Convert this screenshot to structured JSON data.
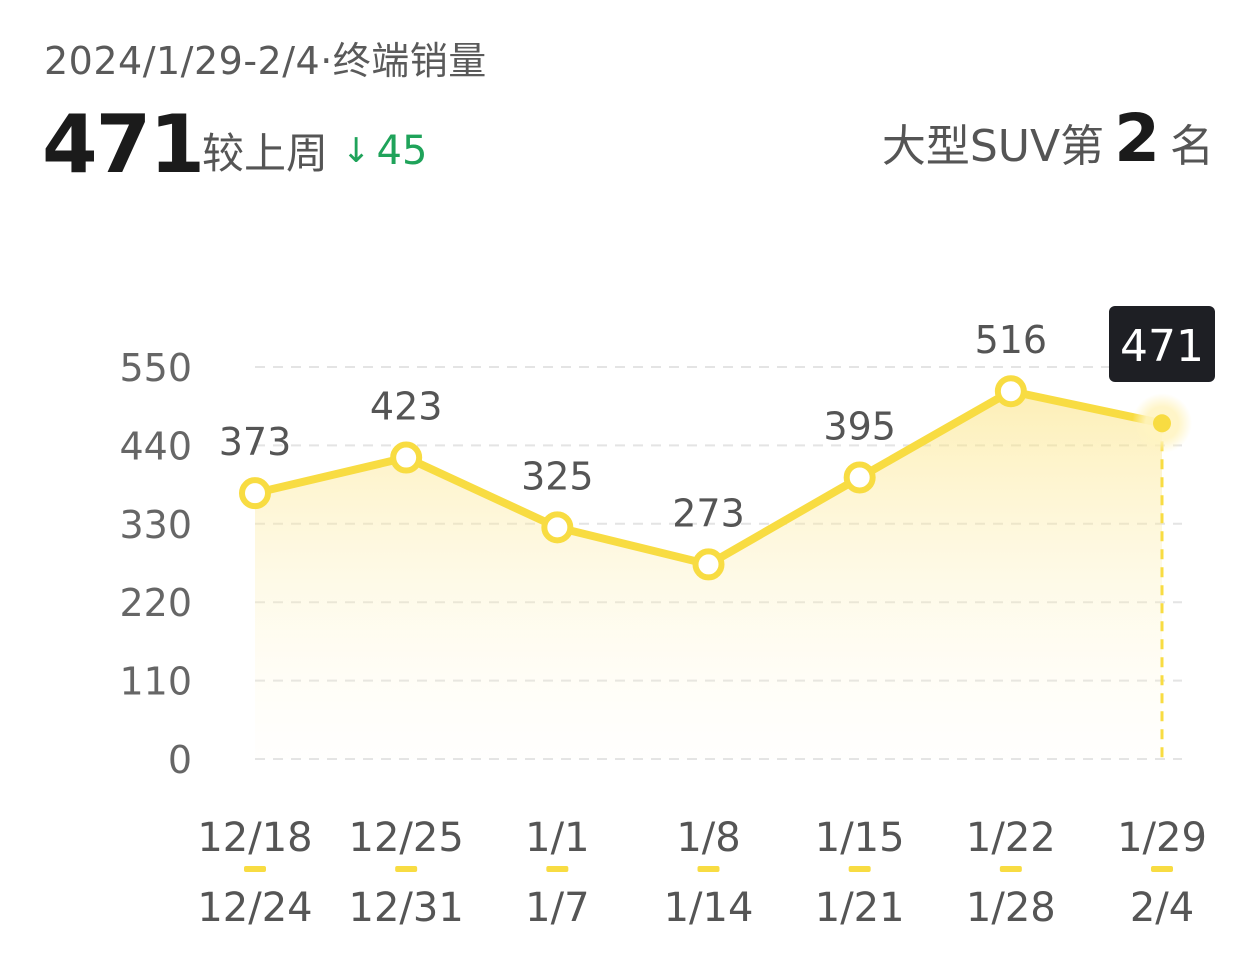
{
  "header": {
    "subtitle": "2024/1/29-2/4·终端销量",
    "value": "471",
    "compare_label": "较上周",
    "compare_arrow": "↓",
    "compare_delta": "45",
    "rank_prefix": "大型SUV第",
    "rank_number": "2",
    "rank_suffix": "名"
  },
  "colors": {
    "line": "#f8dc42",
    "down": "#1fa35a",
    "tooltip_bg": "#1e1f24"
  },
  "chart_data": {
    "type": "area",
    "x_start": [
      "12/18",
      "12/25",
      "1/1",
      "1/8",
      "1/15",
      "1/22",
      "1/29"
    ],
    "x_end": [
      "12/24",
      "12/31",
      "1/7",
      "1/14",
      "1/21",
      "1/28",
      "2/4"
    ],
    "values": [
      373,
      423,
      325,
      273,
      395,
      516,
      471
    ],
    "y_ticks": [
      0,
      110,
      220,
      330,
      440,
      550
    ],
    "ylim": [
      0,
      550
    ],
    "grid": true,
    "highlighted_index": 6,
    "tooltip_value": "471"
  }
}
